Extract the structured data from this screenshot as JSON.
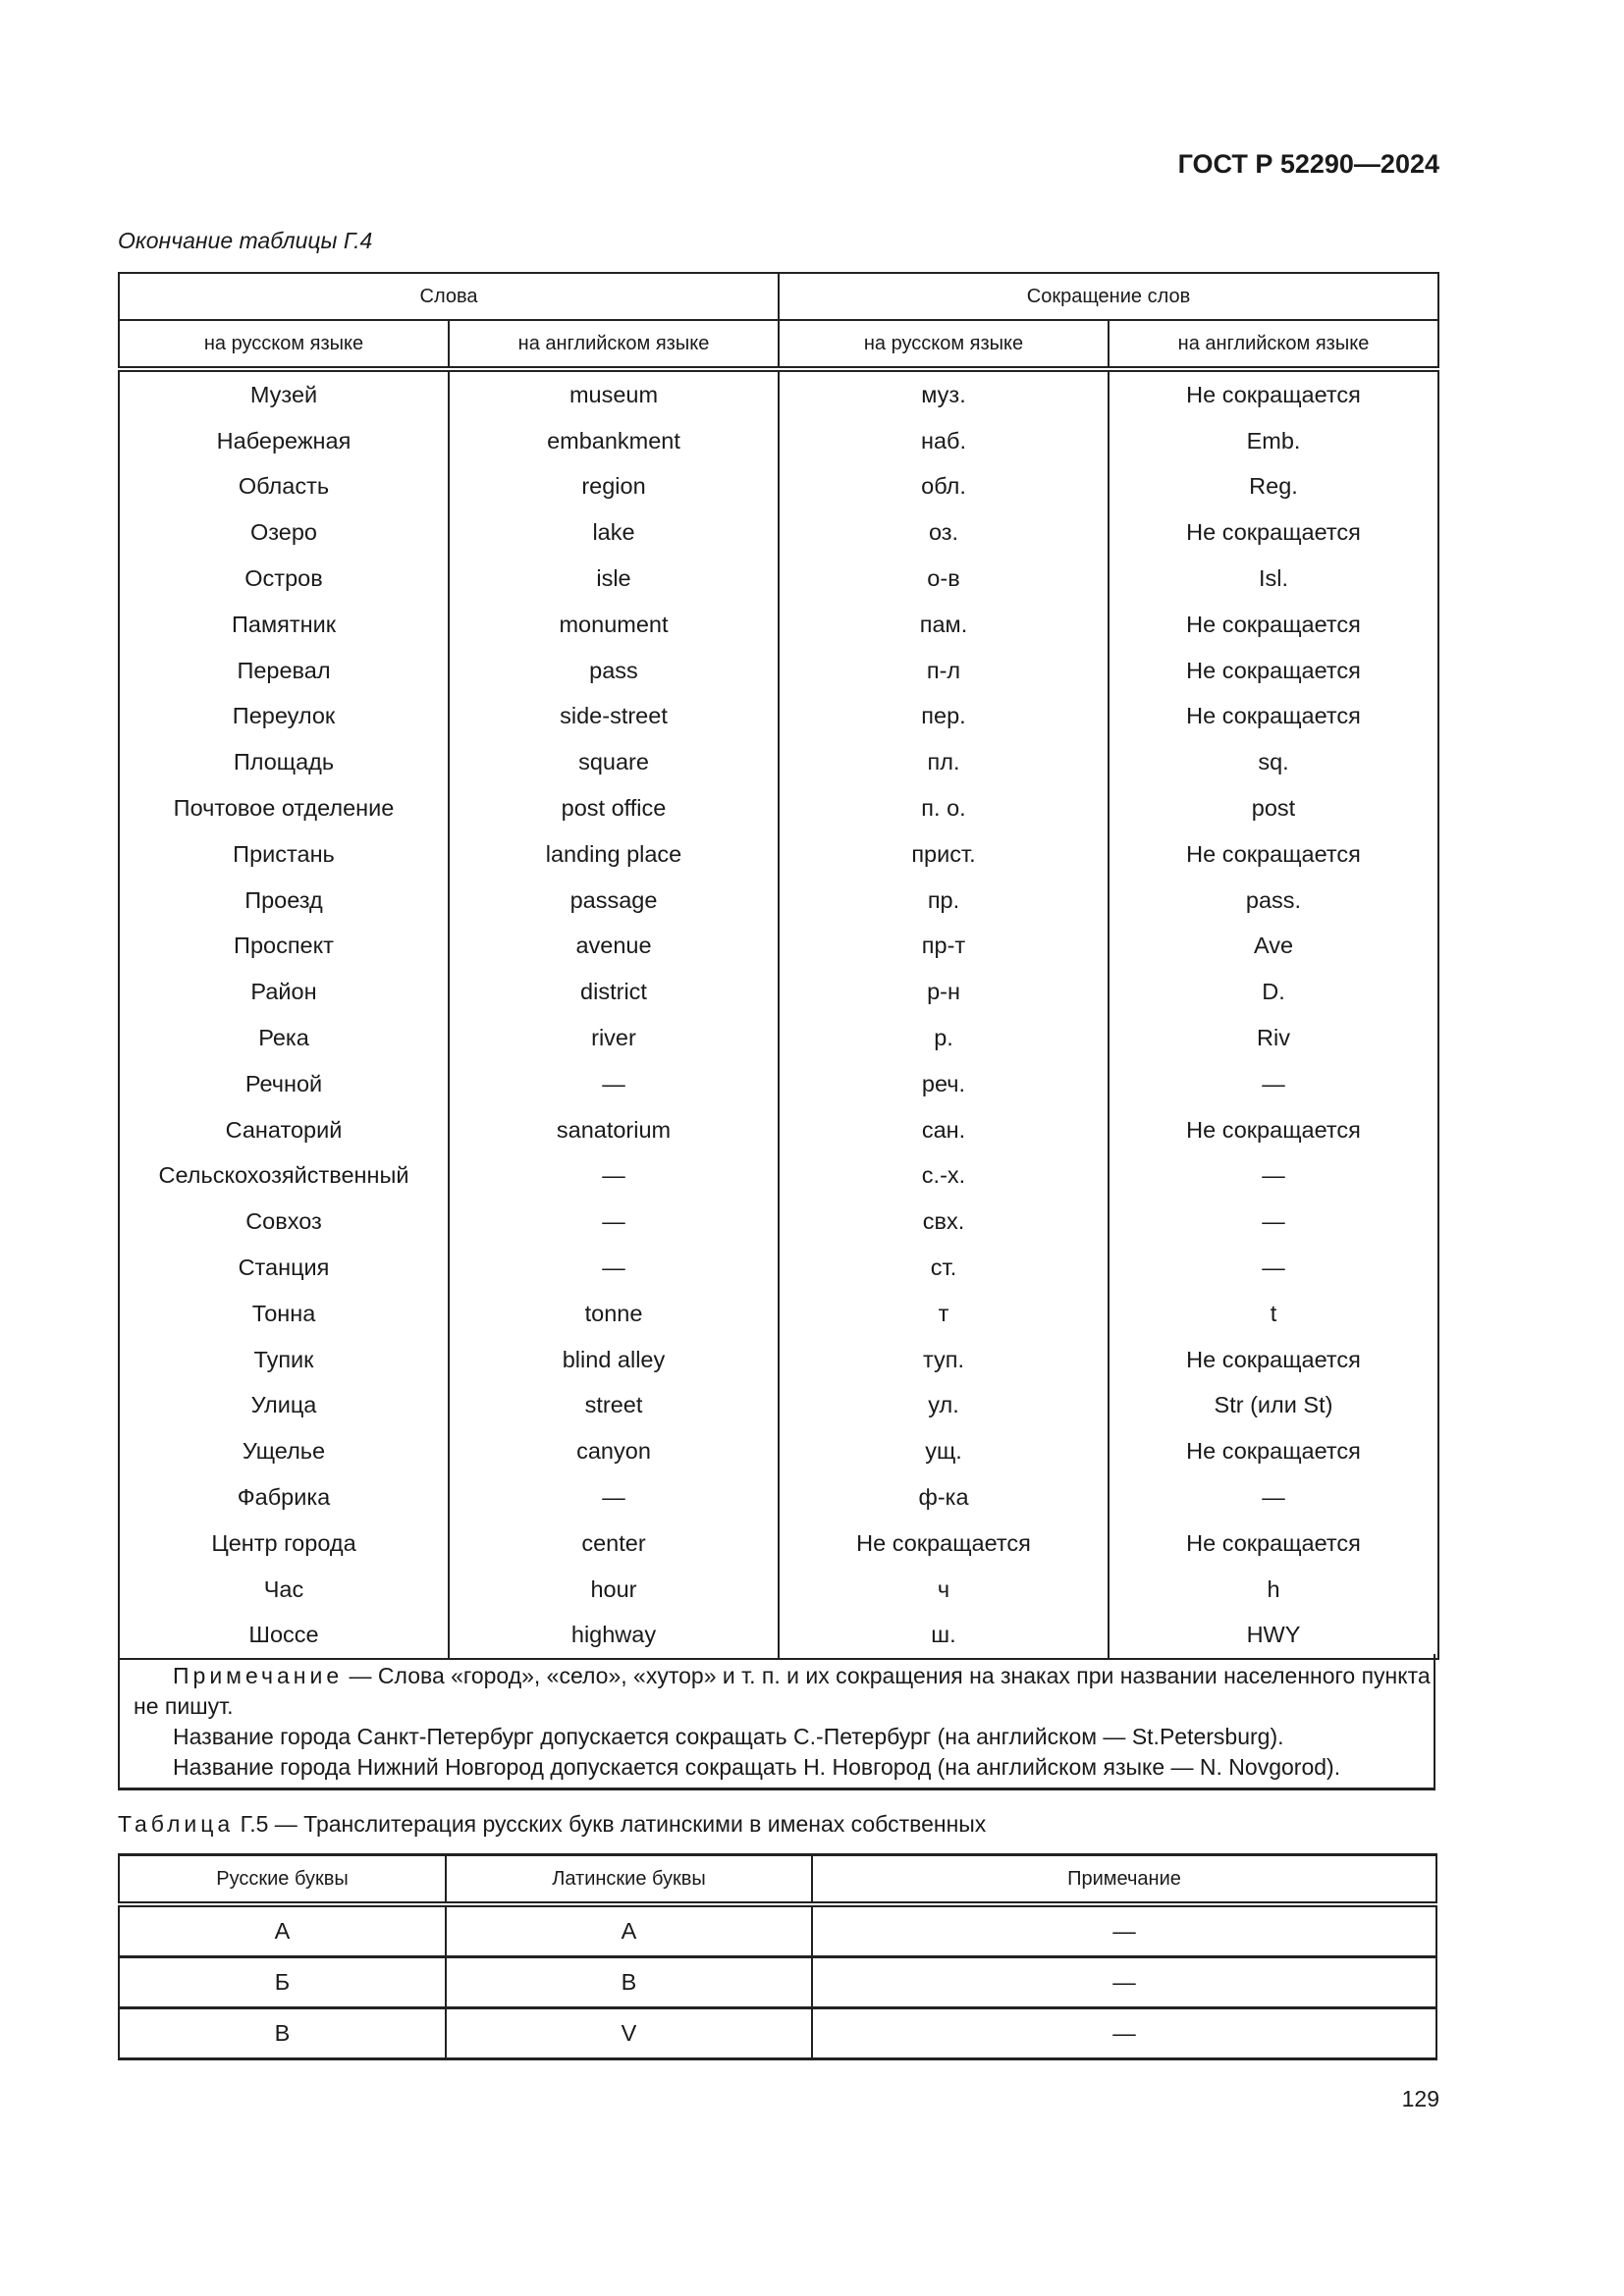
{
  "header": {
    "doc_id": "ГОСТ Р 52290—2024"
  },
  "table4": {
    "continuation": "Окончание таблицы Г.4",
    "group_headers": [
      "Слова",
      "Сокращение слов"
    ],
    "sub_headers": [
      "на русском языке",
      "на английском языке",
      "на русском языке",
      "на английском языке"
    ],
    "rows": [
      [
        "Музей",
        "museum",
        "муз.",
        "Не сокращается"
      ],
      [
        "Набережная",
        "embankment",
        "наб.",
        "Emb."
      ],
      [
        "Область",
        "region",
        "обл.",
        "Reg."
      ],
      [
        "Озеро",
        "lake",
        "оз.",
        "Не сокращается"
      ],
      [
        "Остров",
        "isle",
        "о-в",
        "Isl."
      ],
      [
        "Памятник",
        "monument",
        "пам.",
        "Не сокращается"
      ],
      [
        "Перевал",
        "pass",
        "п-л",
        "Не сокращается"
      ],
      [
        "Переулок",
        "side-street",
        "пер.",
        "Не сокращается"
      ],
      [
        "Площадь",
        "square",
        "пл.",
        "sq."
      ],
      [
        "Почтовое отделение",
        "post office",
        "п. о.",
        "post"
      ],
      [
        "Пристань",
        "landing place",
        "прист.",
        "Не сокращается"
      ],
      [
        "Проезд",
        "passage",
        "пр.",
        "pass."
      ],
      [
        "Проспект",
        "avenue",
        "пр-т",
        "Ave"
      ],
      [
        "Район",
        "district",
        "р-н",
        "D."
      ],
      [
        "Река",
        "river",
        "р.",
        "Riv"
      ],
      [
        "Речной",
        "—",
        "реч.",
        "—"
      ],
      [
        "Санаторий",
        "sanatorium",
        "сан.",
        "Не сокращается"
      ],
      [
        "Сельскохозяйственный",
        "—",
        "с.-х.",
        "—"
      ],
      [
        "Совхоз",
        "—",
        "свх.",
        "—"
      ],
      [
        "Станция",
        "—",
        "ст.",
        "—"
      ],
      [
        "Тонна",
        "tonne",
        "т",
        "t"
      ],
      [
        "Тупик",
        "blind alley",
        "туп.",
        "Не сокращается"
      ],
      [
        "Улица",
        "street",
        "ул.",
        "Str (или St)"
      ],
      [
        "Ущелье",
        "canyon",
        "ущ.",
        "Не сокращается"
      ],
      [
        "Фабрика",
        "—",
        "ф-ка",
        "—"
      ],
      [
        "Центр города",
        "center",
        "Не сокращается",
        "Не сокращается"
      ],
      [
        "Час",
        "hour",
        "ч",
        "h"
      ],
      [
        "Шоссе",
        "highway",
        "ш.",
        "HWY"
      ]
    ],
    "note": {
      "label": "Примечание",
      "line1": " — Слова «город», «село», «хутор» и т. п. и их сокращения на знаках при названии населенного пункта не пишут.",
      "line2": "Название города Санкт-Петербург допускается сокращать С.-Петербург (на английском — St.Petersburg).",
      "line3": "Название города Нижний Новгород допускается сокращать Н. Новгород (на английском языке — N. Novgorod)."
    }
  },
  "table5": {
    "caption_label": "Таблица",
    "caption_text": " Г.5 — Транслитерация русских букв латинскими в именах собственных",
    "headers": [
      "Русские буквы",
      "Латинские буквы",
      "Примечание"
    ],
    "rows": [
      [
        "А",
        "A",
        "—"
      ],
      [
        "Б",
        "B",
        "—"
      ],
      [
        "В",
        "V",
        "—"
      ]
    ]
  },
  "footer": {
    "page_number": "129"
  }
}
